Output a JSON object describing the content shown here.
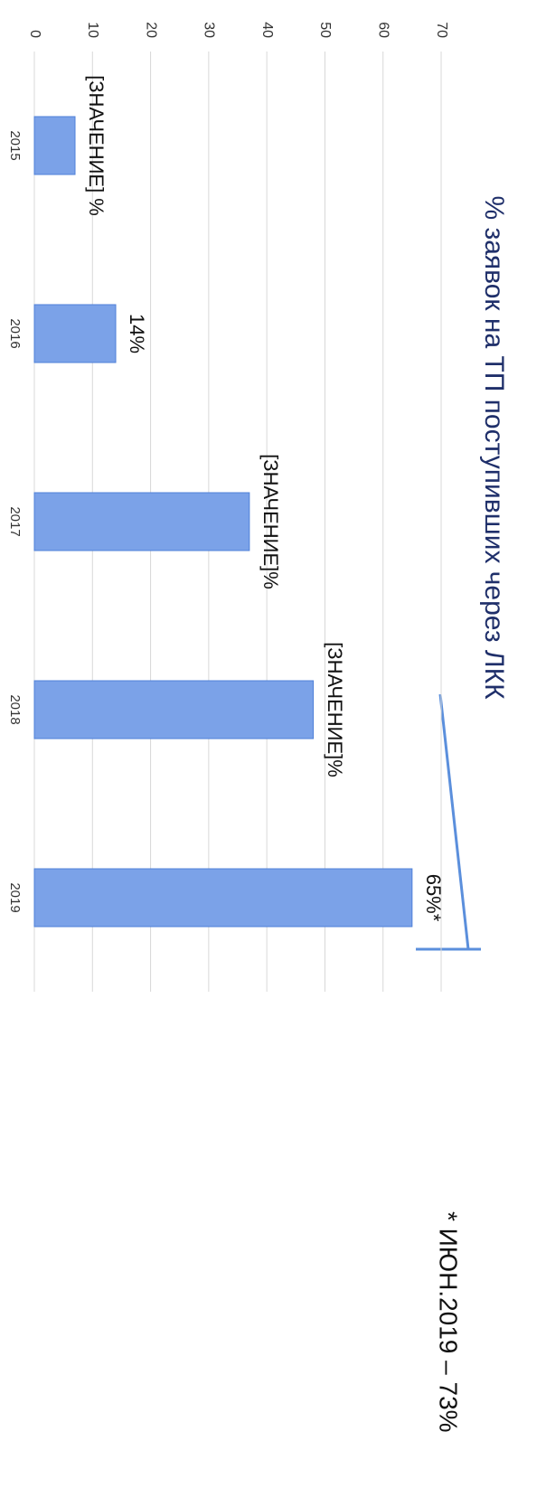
{
  "chart_data": {
    "type": "bar",
    "title": "% заявок на ТП поступивших через ЛКК",
    "categories": [
      "2015",
      "2016",
      "2017",
      "2018",
      "2019"
    ],
    "values": [
      7,
      14,
      37,
      48,
      65
    ],
    "value_labels": [
      "[ЗНАЧЕНИЕ] %",
      "14%",
      "[ЗНАЧЕНИЕ]%",
      "[ЗНАЧЕНИЕ]%",
      "65%*"
    ],
    "color": "#7ba2e8",
    "ylim": [
      0,
      70
    ],
    "yticks": [
      0,
      10,
      20,
      30,
      40,
      50,
      60,
      70
    ],
    "grid": true,
    "annotation": "* ИЮН.2019 – 73%"
  }
}
